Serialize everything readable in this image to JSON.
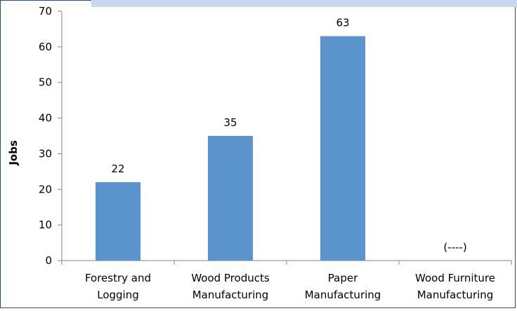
{
  "chart_data": {
    "type": "bar",
    "categories": [
      [
        "Forestry and",
        "Logging"
      ],
      [
        "Wood Products",
        "Manufacturing"
      ],
      [
        "Paper",
        "Manufacturing"
      ],
      [
        "Wood Furniture",
        "Manufacturing"
      ]
    ],
    "values": [
      22,
      35,
      63,
      null
    ],
    "data_labels": [
      "22",
      "35",
      "63",
      "(----)"
    ],
    "title": "",
    "xlabel": "",
    "ylabel": "Jobs",
    "ylim": [
      0,
      70
    ],
    "yticks": [
      0,
      10,
      20,
      30,
      40,
      50,
      60,
      70
    ],
    "grid": false,
    "legend": "none",
    "colors": {
      "bar": "#5b93cc",
      "axis": "#868686",
      "frame": "#2f4a6e",
      "top_band": "#c7d8ee"
    }
  }
}
